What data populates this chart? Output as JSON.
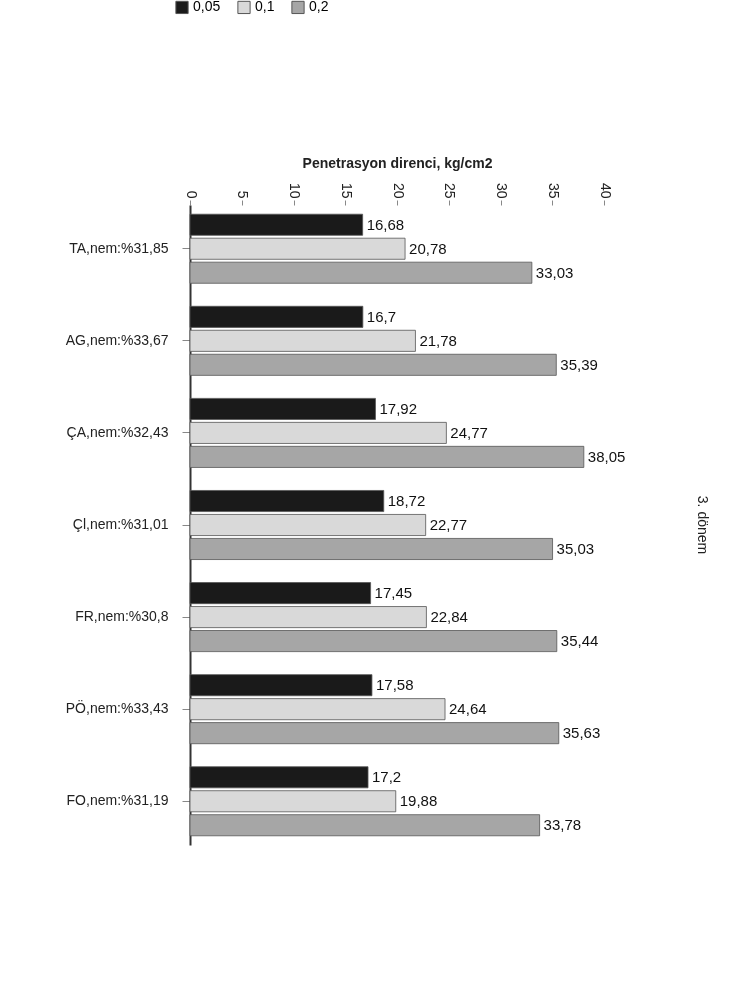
{
  "chart_data": {
    "type": "bar",
    "orientation": "horizontal",
    "title": "3. dönem",
    "xlabel": "Penetrasyon direnci, kg/cm2",
    "categories": [
      "TA,nem:%31,85",
      "AG,nem:%33,67",
      "ÇA,nem:%32,43",
      "Çl,nem:%31,01",
      "FR,nem:%30,8",
      "PÖ,nem:%33,43",
      "FO,nem:%31,19"
    ],
    "series": [
      {
        "name": "0,05",
        "color": "#1a1a1a",
        "values": [
          16.68,
          16.7,
          17.92,
          18.72,
          17.45,
          17.58,
          17.2
        ],
        "value_labels": [
          "16,68",
          "16,7",
          "17,92",
          "18,72",
          "17,45",
          "17,58",
          "17,2"
        ]
      },
      {
        "name": "0,1",
        "color": "#d9d9d9",
        "values": [
          20.78,
          21.78,
          24.77,
          22.77,
          22.84,
          24.64,
          19.88
        ],
        "value_labels": [
          "20,78",
          "21,78",
          "24,77",
          "22,77",
          "22,84",
          "24,64",
          "19,88"
        ]
      },
      {
        "name": "0,2",
        "color": "#a6a6a6",
        "values": [
          33.03,
          35.39,
          38.05,
          35.03,
          35.44,
          35.63,
          33.78
        ],
        "value_labels": [
          "33,03",
          "35,39",
          "38,05",
          "35,03",
          "35,44",
          "35,63",
          "33,78"
        ]
      }
    ],
    "xlim": [
      0,
      40
    ],
    "xticks": [
      0,
      5,
      10,
      15,
      20,
      25,
      30,
      35,
      40
    ],
    "legend": "top left",
    "grid": false
  }
}
